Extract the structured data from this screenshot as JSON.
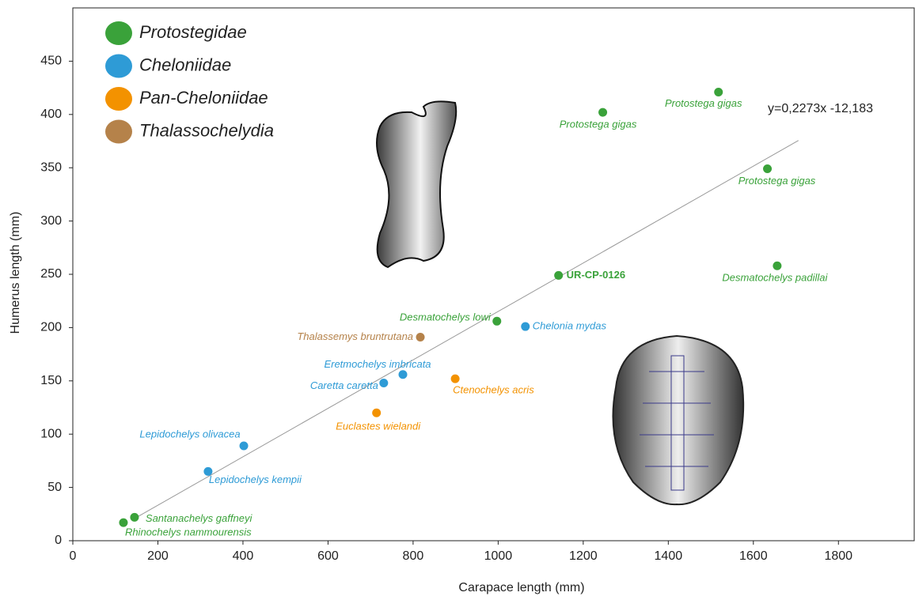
{
  "chart_data": {
    "type": "scatter",
    "x_label": "Carapace length (mm)",
    "y_label": "Humerus length (mm)",
    "xlim": [
      0,
      1980
    ],
    "ylim": [
      0,
      500
    ],
    "xticks": [
      0,
      200,
      400,
      600,
      800,
      1000,
      1200,
      1400,
      1600,
      1800
    ],
    "yticks": [
      0,
      50,
      100,
      150,
      200,
      250,
      300,
      350,
      400,
      450
    ],
    "series": [
      {
        "name": "Protostegidae",
        "color": "#3aa23a",
        "labels": [
          "Protostega gigas",
          "Protostega gigas",
          "Protostega gigas",
          "Desmatochelys padillai",
          "UR-CP-0126",
          "Desmatochelys lowi",
          "Santanachelys gaffneyi",
          "Rhinochelys nammourensis"
        ],
        "x": [
          1246,
          1518,
          1633,
          1656,
          1142,
          997,
          145,
          119
        ],
        "values": [
          402,
          421,
          349,
          258,
          249,
          206,
          22,
          17
        ]
      },
      {
        "name": "Cheloniidae",
        "color": "#2e9bd6",
        "labels": [
          "Chelonia mydas",
          "Eretmochelys imbricata",
          "Caretta caretta",
          "Lepidochelys olivacea",
          "Lepidochelys kempii"
        ],
        "x": [
          1064,
          776,
          731,
          402,
          318
        ],
        "values": [
          201,
          156,
          148,
          89,
          65
        ]
      },
      {
        "name": "Pan-Cheloniidae",
        "color": "#f39200",
        "labels": [
          "Ctenochelys acris",
          "Euclastes wielandi"
        ],
        "x": [
          899,
          714
        ],
        "values": [
          152,
          120
        ]
      },
      {
        "name": "Thalassochelydia",
        "color": "#b5824a",
        "labels": [
          "Thalassemys bruntrutana"
        ],
        "x": [
          817
        ],
        "values": [
          191
        ]
      }
    ],
    "trendline": {
      "label": "y=0,2273x -12,183",
      "x": [
        145,
        1706
      ],
      "y": [
        20.8,
        375.6
      ]
    }
  }
}
